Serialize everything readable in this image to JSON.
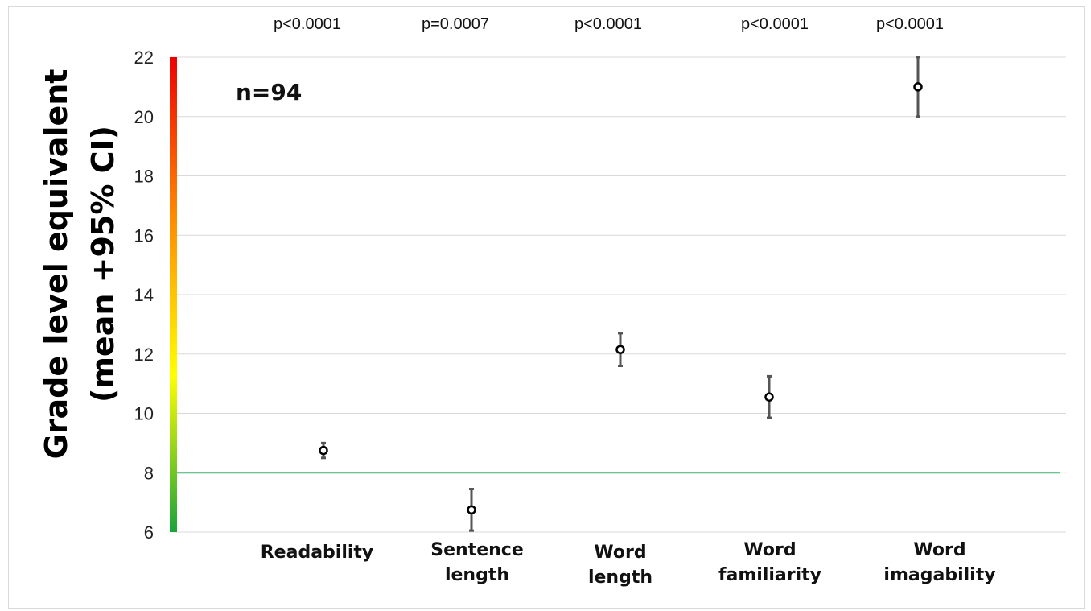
{
  "chart_data": {
    "type": "scatter",
    "title": "",
    "ylabel": [
      "Grade level equivalent",
      "(mean +95% CI)"
    ],
    "xlabel": "",
    "ylim": [
      6,
      22
    ],
    "yticks": [
      6,
      8,
      10,
      12,
      14,
      16,
      18,
      20,
      22
    ],
    "grid": true,
    "annotation": "n=94",
    "reference_line": {
      "y": 8,
      "color": "#3cb371"
    },
    "color_scale": [
      "#1aa33a",
      "#ffff00",
      "#ff8c00",
      "#ee0000"
    ],
    "categories": [
      [
        "Readability"
      ],
      [
        "Sentence",
        "length"
      ],
      [
        "Word",
        "length"
      ],
      [
        "Word",
        "familiarity"
      ],
      [
        "Word",
        "imagability"
      ]
    ],
    "points": [
      {
        "mean": 8.75,
        "ci_low": 8.5,
        "ci_high": 9.0,
        "p_value": "p<0.0001"
      },
      {
        "mean": 6.75,
        "ci_low": 6.05,
        "ci_high": 7.45,
        "p_value": "p=0.0007"
      },
      {
        "mean": 12.15,
        "ci_low": 11.6,
        "ci_high": 12.7,
        "p_value": "p<0.0001"
      },
      {
        "mean": 10.55,
        "ci_low": 9.85,
        "ci_high": 11.25,
        "p_value": "p<0.0001"
      },
      {
        "mean": 21.0,
        "ci_low": 20.0,
        "ci_high": 22.0,
        "p_value": "p<0.0001"
      }
    ]
  }
}
